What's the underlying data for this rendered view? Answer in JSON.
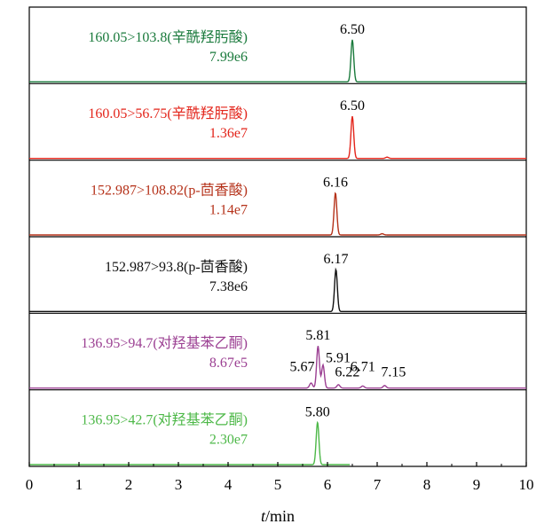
{
  "chart_data": {
    "type": "line",
    "xlabel_var": "t",
    "xlabel_unit": "/min",
    "xlim": [
      0,
      10
    ],
    "x_ticks": [
      "0",
      "1",
      "2",
      "3",
      "4",
      "5",
      "6",
      "7",
      "8",
      "9",
      "10"
    ],
    "grid": false,
    "panels": [
      {
        "transition": "160.05>103.8(辛酰羟肟酸)",
        "intensity": "7.99e6",
        "color": "#1a7a3c",
        "peaks": [
          {
            "rt": 6.5,
            "height": 1.0,
            "label": "6.50"
          }
        ],
        "baseline_end": 10
      },
      {
        "transition": "160.05>56.75(辛酰羟肟酸)",
        "intensity": "1.36e7",
        "color": "#e3251b",
        "peaks": [
          {
            "rt": 6.5,
            "height": 1.0,
            "label": "6.50"
          },
          {
            "rt": 7.2,
            "height": 0.03,
            "label": ""
          }
        ],
        "baseline_end": 10
      },
      {
        "transition": "152.987>108.82(p-茴香酸)",
        "intensity": "1.14e7",
        "color": "#b5321a",
        "peaks": [
          {
            "rt": 6.16,
            "height": 1.0,
            "label": "6.16"
          },
          {
            "rt": 7.1,
            "height": 0.03,
            "label": ""
          }
        ],
        "baseline_end": 10
      },
      {
        "transition": "152.987>93.8(p-茴香酸)",
        "intensity": "7.38e6",
        "color": "#111111",
        "peaks": [
          {
            "rt": 6.17,
            "height": 1.0,
            "label": "6.17"
          }
        ],
        "baseline_end": 10
      },
      {
        "transition": "136.95>94.7(对羟基苯乙酮)",
        "intensity": "8.67e5",
        "color": "#9b3f92",
        "peaks": [
          {
            "rt": 5.67,
            "height": 0.12,
            "label": "5.67"
          },
          {
            "rt": 5.81,
            "height": 1.0,
            "label": "5.81"
          },
          {
            "rt": 5.91,
            "height": 0.55,
            "label": "5.91"
          },
          {
            "rt": 6.22,
            "height": 0.08,
            "label": "6.22"
          },
          {
            "rt": 6.71,
            "height": 0.05,
            "label": "6.71"
          },
          {
            "rt": 7.15,
            "height": 0.06,
            "label": "7.15"
          }
        ],
        "baseline_end": 10
      },
      {
        "transition": "136.95>42.7(对羟基苯乙酮)",
        "intensity": "2.30e7",
        "color": "#4db848",
        "peaks": [
          {
            "rt": 5.8,
            "height": 1.0,
            "label": "5.80"
          }
        ],
        "baseline_end": 6.45
      }
    ]
  }
}
